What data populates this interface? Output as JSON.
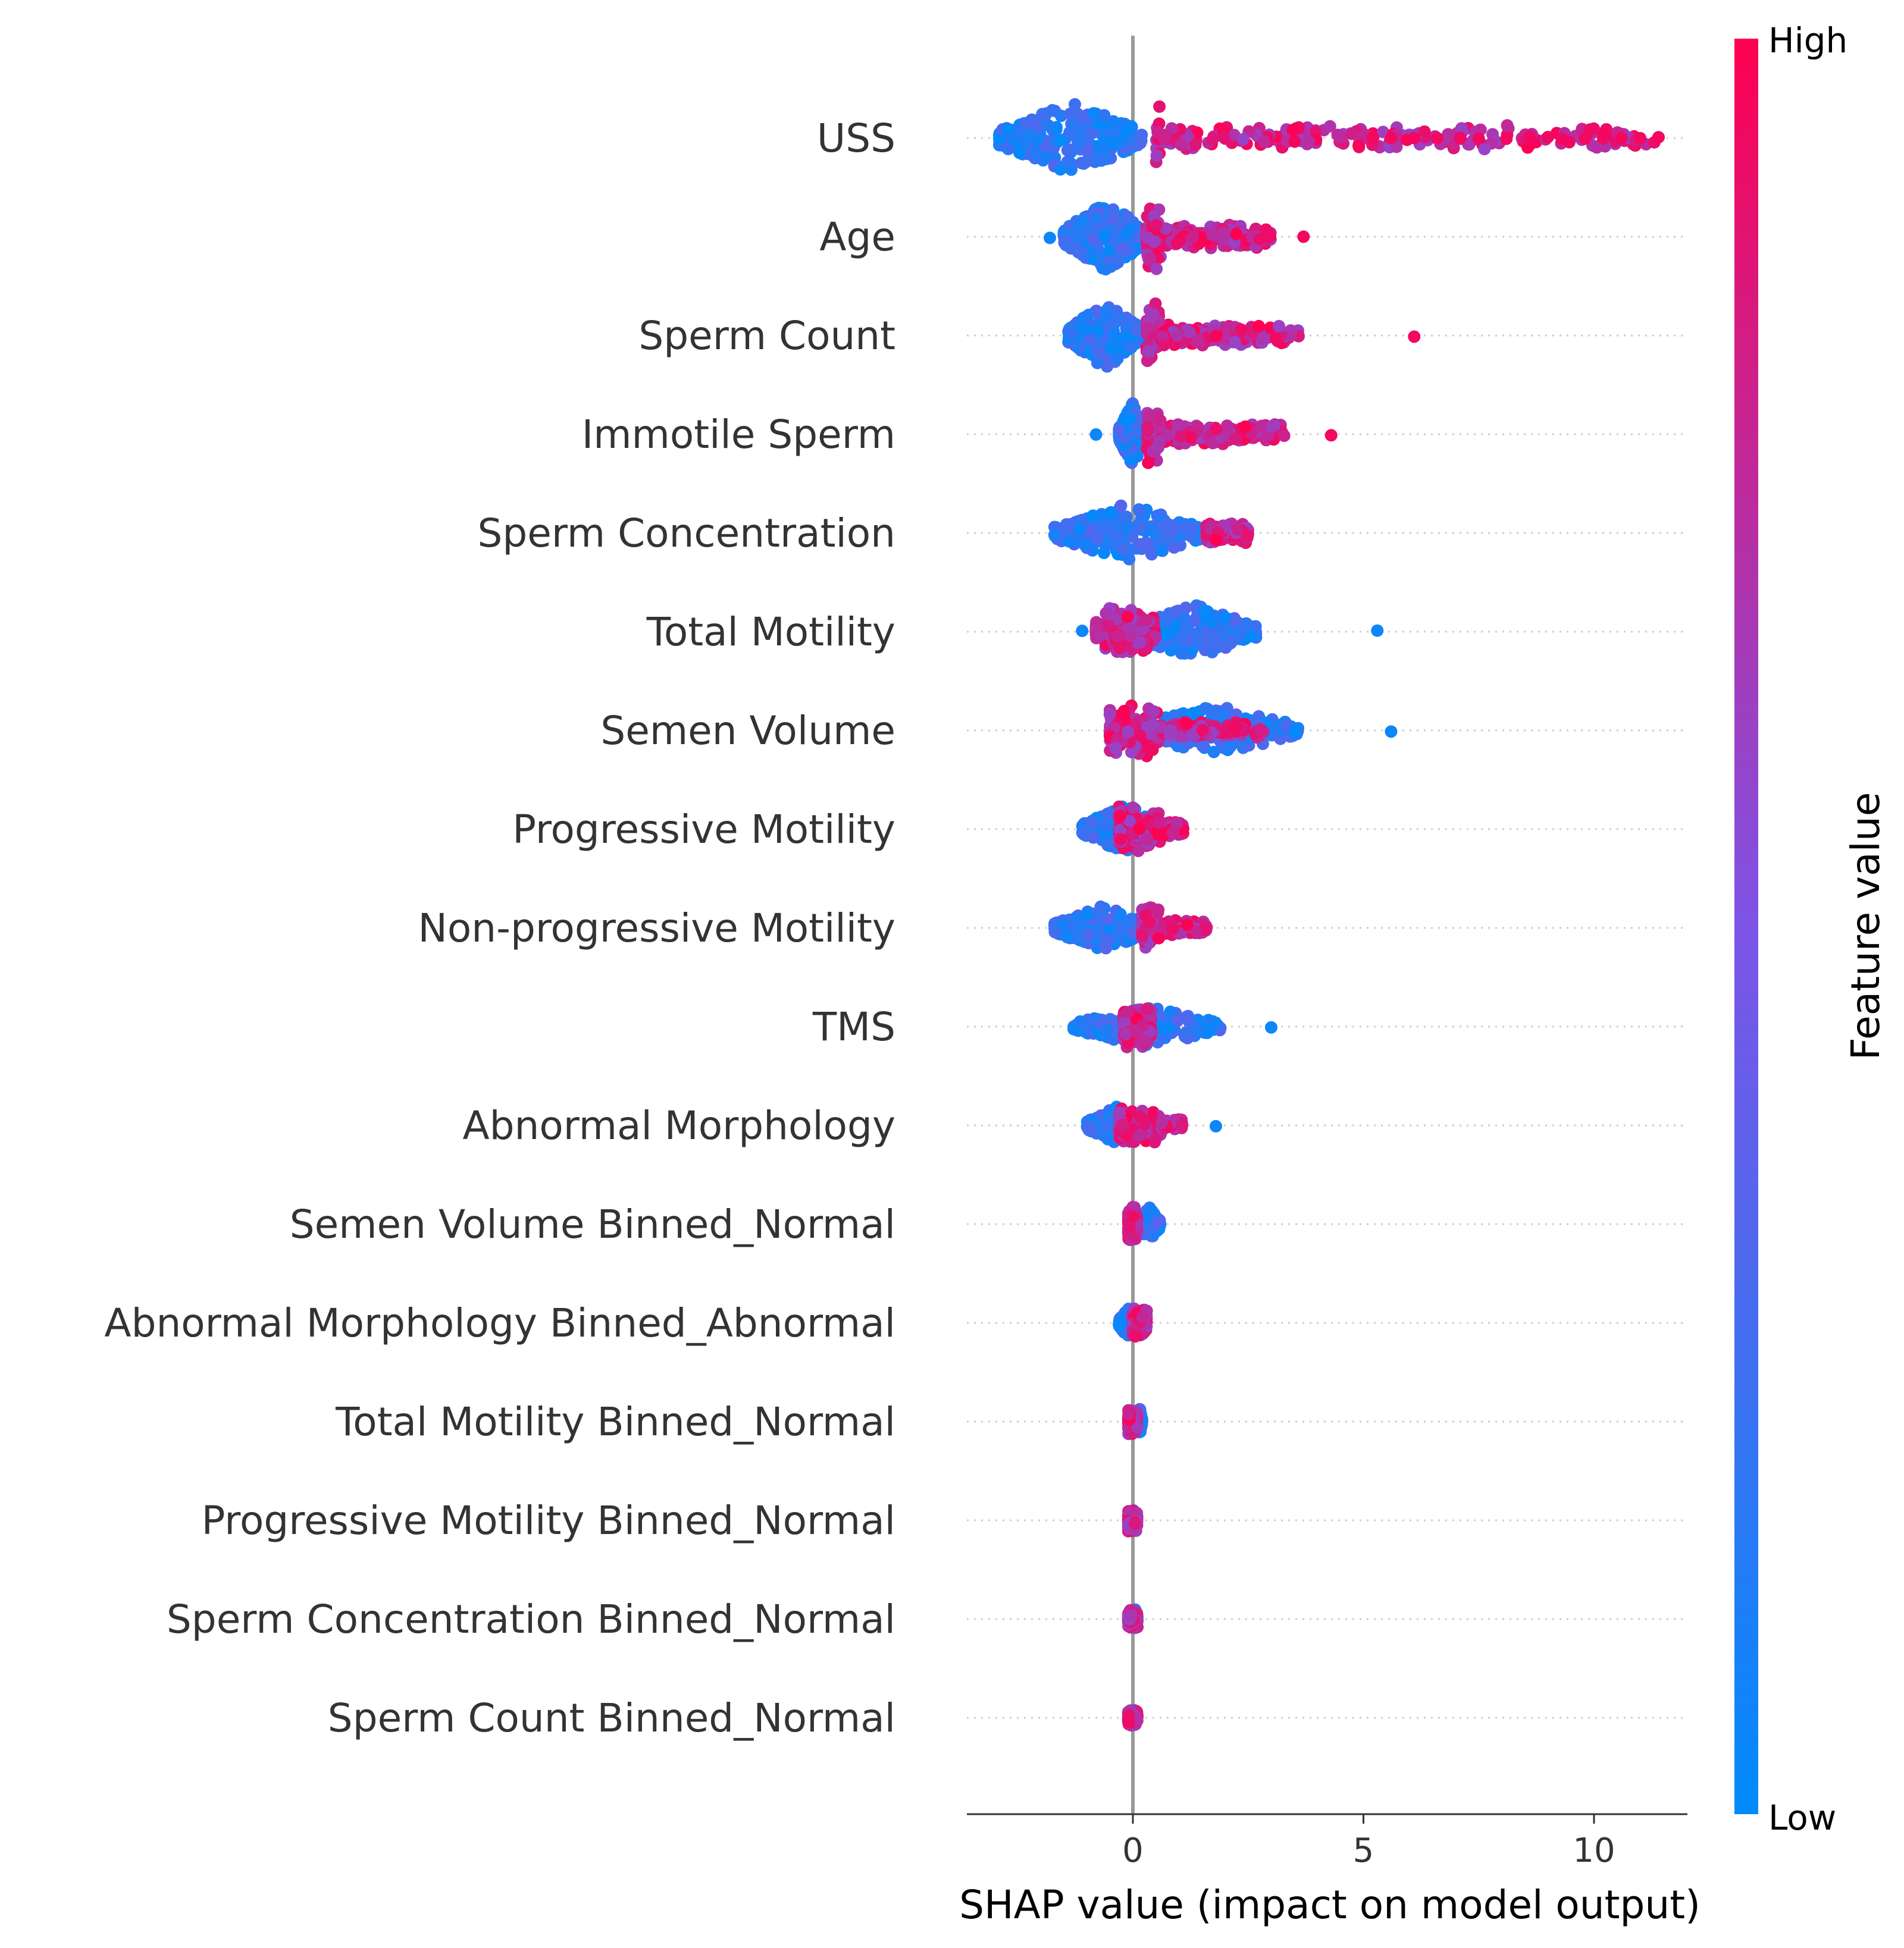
{
  "chart_data": {
    "type": "scatter",
    "subtype": "beeswarm",
    "title": "",
    "xlabel": "SHAP value (impact on model output)",
    "xlim": [
      -3.5,
      12
    ],
    "xticks": [
      0,
      5,
      10
    ],
    "grid": false,
    "features": [
      {
        "name": "USS",
        "low_range": [
          -2.9,
          0.2
        ],
        "high_range": [
          0.5,
          11.4
        ],
        "outliers_high": [
          5.2,
          5.6,
          6.1,
          6.6,
          7.1,
          7.5,
          8.1,
          8.6,
          9.0,
          9.3,
          9.8,
          10.2,
          10.6,
          11.0,
          11.4
        ],
        "outliers_low": []
      },
      {
        "name": "Age",
        "low_range": [
          -1.5,
          0.3
        ],
        "high_range": [
          0.3,
          3.0
        ],
        "outliers_high": [
          3.7
        ],
        "outliers_low": [
          -1.8
        ]
      },
      {
        "name": "Sperm Count",
        "low_range": [
          -1.4,
          0.2
        ],
        "high_range": [
          0.3,
          3.6
        ],
        "outliers_high": [
          6.1
        ],
        "outliers_low": []
      },
      {
        "name": "Immotile Sperm",
        "low_range": [
          -0.3,
          0.3
        ],
        "high_range": [
          0.3,
          3.3
        ],
        "outliers_high": [
          4.3
        ],
        "outliers_low": [
          -0.8
        ]
      },
      {
        "name": "Sperm Concentration",
        "low_range": [
          -1.7,
          1.5
        ],
        "high_range": [
          1.6,
          2.5
        ],
        "outliers_high": [],
        "outliers_low": []
      },
      {
        "name": "Total Motility",
        "low_range": [
          0.0,
          2.7
        ],
        "high_range": [
          -0.8,
          0.5
        ],
        "outliers_high": [],
        "outliers_low": [
          5.3,
          -1.1
        ]
      },
      {
        "name": "Semen Volume",
        "low_range": [
          0.0,
          3.6
        ],
        "high_range": [
          -0.5,
          2.9
        ],
        "outliers_high": [],
        "outliers_low": [
          5.6
        ]
      },
      {
        "name": "Progressive Motility",
        "low_range": [
          -1.1,
          0.8
        ],
        "high_range": [
          -0.3,
          1.1
        ],
        "outliers_high": [],
        "outliers_low": []
      },
      {
        "name": "Non-progressive Motility",
        "low_range": [
          -1.7,
          0.4
        ],
        "high_range": [
          0.2,
          1.6
        ],
        "outliers_high": [],
        "outliers_low": []
      },
      {
        "name": "TMS",
        "low_range": [
          -1.3,
          1.9
        ],
        "high_range": [
          -0.2,
          0.4
        ],
        "outliers_high": [],
        "outliers_low": [
          3.0
        ]
      },
      {
        "name": "Abnormal Morphology",
        "low_range": [
          -1.0,
          0.3
        ],
        "high_range": [
          -0.3,
          1.1
        ],
        "outliers_high": [],
        "outliers_low": [
          1.8
        ]
      },
      {
        "name": "Semen Volume Binned_Normal",
        "low_range": [
          0.1,
          0.6
        ],
        "high_range": [
          -0.1,
          0.1
        ],
        "outliers_high": [],
        "outliers_low": []
      },
      {
        "name": "Abnormal Morphology Binned_Abnormal",
        "low_range": [
          -0.3,
          0.1
        ],
        "high_range": [
          0.0,
          0.3
        ],
        "outliers_high": [],
        "outliers_low": []
      },
      {
        "name": "Total Motility Binned_Normal",
        "low_range": [
          0.1,
          0.2
        ],
        "high_range": [
          -0.1,
          0.1
        ],
        "outliers_high": [],
        "outliers_low": []
      },
      {
        "name": "Progressive Motility Binned_Normal",
        "low_range": [
          -0.05,
          0.05
        ],
        "high_range": [
          -0.1,
          0.1
        ],
        "outliers_high": [],
        "outliers_low": []
      },
      {
        "name": "Sperm Concentration Binned_Normal",
        "low_range": [
          0.0,
          0.1
        ],
        "high_range": [
          -0.1,
          0.1
        ],
        "outliers_high": [],
        "outliers_low": []
      },
      {
        "name": "Sperm Count Binned_Normal",
        "low_range": [
          0.0,
          0.05
        ],
        "high_range": [
          -0.1,
          0.1
        ],
        "outliers_high": [],
        "outliers_low": []
      }
    ],
    "colorbar": {
      "label": "Feature value",
      "high_label": "High",
      "low_label": "Low",
      "low_color": "#008bfb",
      "mid_color": "#7d54e6",
      "high_color": "#ff0051"
    },
    "zero_line_color": "#999999",
    "row_guide_color": "#cccccc"
  }
}
